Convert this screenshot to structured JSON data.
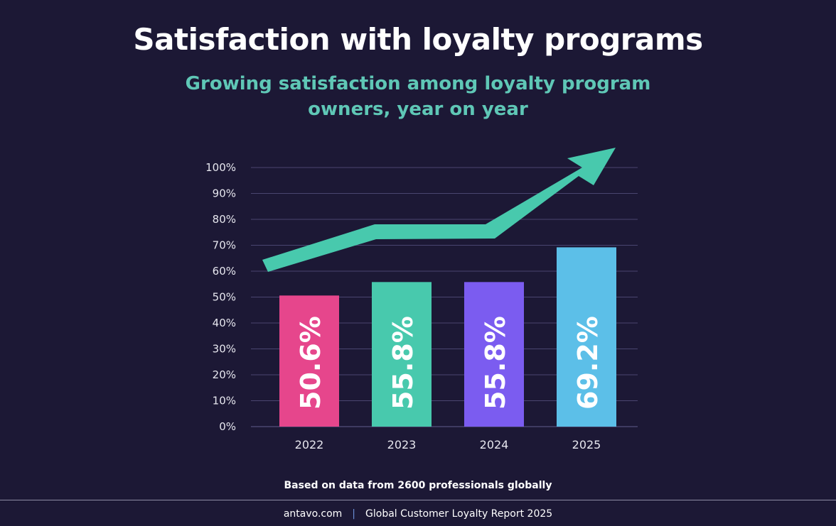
{
  "header": {
    "title": "Satisfaction with loyalty programs",
    "subtitle": "Growing satisfaction among loyalty program owners, year on year"
  },
  "note": "Based on data from 2600 professionals globally",
  "footer": {
    "site": "antavo.com",
    "separator": "|",
    "report": "Global Customer Loyalty Report 2025"
  },
  "colors": {
    "background": "#1c1835",
    "gridline": "#4a4570",
    "axis_text": "#e6e6ee",
    "arrow": "#48c9ad",
    "bars": [
      "#e6468c",
      "#48c9ad",
      "#7b5cf0",
      "#5cbfe8"
    ]
  },
  "chart_data": {
    "type": "bar",
    "categories": [
      "2022",
      "2023",
      "2024",
      "2025"
    ],
    "values": [
      50.6,
      55.8,
      55.8,
      69.2
    ],
    "value_labels": [
      "50.6%",
      "55.8%",
      "55.8%",
      "69.2%"
    ],
    "ylim": [
      0,
      100
    ],
    "yticks": [
      0,
      10,
      20,
      30,
      40,
      50,
      60,
      70,
      80,
      90,
      100
    ],
    "ytick_labels": [
      "0%",
      "10%",
      "20%",
      "30%",
      "40%",
      "50%",
      "60%",
      "70%",
      "80%",
      "90%",
      "100%"
    ],
    "grid": true,
    "legend": "none",
    "title": "",
    "xlabel": "",
    "ylabel": "",
    "trend_arrow": true
  }
}
